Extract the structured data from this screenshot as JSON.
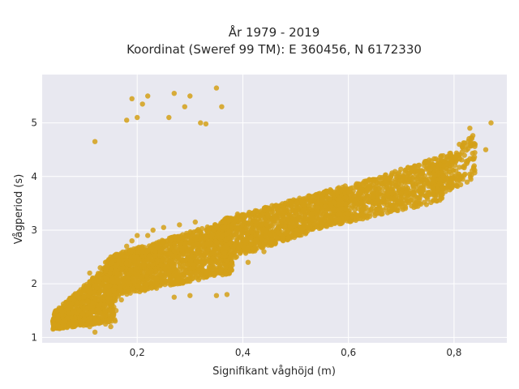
{
  "chart_data": {
    "type": "scatter",
    "title": "År 1979 - 2019",
    "subtitle": "Koordinat (Sweref 99 TM): E 360456, N 6172330",
    "xlabel": "Signifikant våghöjd (m)",
    "ylabel": "Vågperiod (s)",
    "xlim": [
      0.02,
      0.9
    ],
    "ylim": [
      0.9,
      5.9
    ],
    "x_ticks": [
      0.2,
      0.4,
      0.6,
      0.8
    ],
    "x_tick_labels": [
      "0,2",
      "0,4",
      "0,6",
      "0,8"
    ],
    "y_ticks": [
      1,
      2,
      3,
      4,
      5
    ],
    "y_tick_labels": [
      "1",
      "2",
      "3",
      "4",
      "5"
    ],
    "grid": true,
    "legend": "none",
    "colors": {
      "marker": "#d4a017",
      "plot_background": "#e8e8f0",
      "grid": "#ffffff"
    },
    "series": [
      {
        "points": [
          {
            "x": 0.05,
            "y": 1.22
          },
          {
            "x": 0.05,
            "y": 1.4
          },
          {
            "x": 0.06,
            "y": 1.3
          },
          {
            "x": 0.07,
            "y": 1.45
          },
          {
            "x": 0.08,
            "y": 1.25
          },
          {
            "x": 0.09,
            "y": 1.5
          },
          {
            "x": 0.1,
            "y": 1.35
          },
          {
            "x": 0.11,
            "y": 1.2
          },
          {
            "x": 0.12,
            "y": 1.1
          },
          {
            "x": 0.13,
            "y": 1.28
          },
          {
            "x": 0.14,
            "y": 1.25
          },
          {
            "x": 0.15,
            "y": 1.2
          },
          {
            "x": 0.08,
            "y": 1.7
          },
          {
            "x": 0.1,
            "y": 1.9
          },
          {
            "x": 0.11,
            "y": 2.2
          },
          {
            "x": 0.12,
            "y": 2.1
          },
          {
            "x": 0.13,
            "y": 2.3
          },
          {
            "x": 0.14,
            "y": 2.4
          },
          {
            "x": 0.15,
            "y": 2.5
          },
          {
            "x": 0.16,
            "y": 2.55
          },
          {
            "x": 0.17,
            "y": 1.7
          },
          {
            "x": 0.18,
            "y": 2.7
          },
          {
            "x": 0.19,
            "y": 2.8
          },
          {
            "x": 0.2,
            "y": 2.9
          },
          {
            "x": 0.21,
            "y": 2.6
          },
          {
            "x": 0.22,
            "y": 2.9
          },
          {
            "x": 0.23,
            "y": 3.0
          },
          {
            "x": 0.25,
            "y": 3.05
          },
          {
            "x": 0.26,
            "y": 2.2
          },
          {
            "x": 0.27,
            "y": 1.75
          },
          {
            "x": 0.28,
            "y": 3.1
          },
          {
            "x": 0.3,
            "y": 1.78
          },
          {
            "x": 0.31,
            "y": 3.15
          },
          {
            "x": 0.33,
            "y": 2.2
          },
          {
            "x": 0.35,
            "y": 1.78
          },
          {
            "x": 0.37,
            "y": 1.8
          },
          {
            "x": 0.39,
            "y": 3.3
          },
          {
            "x": 0.41,
            "y": 2.4
          },
          {
            "x": 0.44,
            "y": 2.6
          },
          {
            "x": 0.45,
            "y": 3.4
          },
          {
            "x": 0.48,
            "y": 3.5
          },
          {
            "x": 0.5,
            "y": 2.9
          },
          {
            "x": 0.52,
            "y": 3.6
          },
          {
            "x": 0.55,
            "y": 3.2
          },
          {
            "x": 0.58,
            "y": 3.7
          },
          {
            "x": 0.6,
            "y": 3.3
          },
          {
            "x": 0.62,
            "y": 3.8
          },
          {
            "x": 0.65,
            "y": 3.5
          },
          {
            "x": 0.68,
            "y": 4.0
          },
          {
            "x": 0.7,
            "y": 3.6
          },
          {
            "x": 0.72,
            "y": 4.1
          },
          {
            "x": 0.75,
            "y": 3.7
          },
          {
            "x": 0.77,
            "y": 4.3
          },
          {
            "x": 0.79,
            "y": 3.85
          },
          {
            "x": 0.81,
            "y": 4.6
          },
          {
            "x": 0.82,
            "y": 4.2
          },
          {
            "x": 0.83,
            "y": 4.9
          },
          {
            "x": 0.84,
            "y": 4.6
          },
          {
            "x": 0.86,
            "y": 4.5
          },
          {
            "x": 0.87,
            "y": 5.0
          },
          {
            "x": 0.12,
            "y": 4.65
          },
          {
            "x": 0.18,
            "y": 5.05
          },
          {
            "x": 0.19,
            "y": 5.45
          },
          {
            "x": 0.2,
            "y": 5.1
          },
          {
            "x": 0.21,
            "y": 5.35
          },
          {
            "x": 0.22,
            "y": 5.5
          },
          {
            "x": 0.26,
            "y": 5.1
          },
          {
            "x": 0.27,
            "y": 5.55
          },
          {
            "x": 0.29,
            "y": 5.3
          },
          {
            "x": 0.3,
            "y": 5.5
          },
          {
            "x": 0.32,
            "y": 5.0
          },
          {
            "x": 0.33,
            "y": 4.98
          },
          {
            "x": 0.35,
            "y": 5.65
          },
          {
            "x": 0.36,
            "y": 5.3
          }
        ]
      }
    ],
    "dense_bands": [
      {
        "x_from": 0.04,
        "x_to": 0.16,
        "y_low_from": 1.15,
        "y_low_to": 1.3,
        "y_high_from": 1.45,
        "y_high_to": 2.5,
        "count": 900
      },
      {
        "x_from": 0.14,
        "x_to": 0.38,
        "y_low_from": 1.72,
        "y_low_to": 2.2,
        "y_high_from": 2.5,
        "y_high_to": 3.2,
        "count": 1500
      },
      {
        "x_from": 0.36,
        "x_to": 0.6,
        "y_low_from": 2.4,
        "y_low_to": 3.2,
        "y_high_from": 3.2,
        "y_high_to": 3.85,
        "count": 1100
      },
      {
        "x_from": 0.58,
        "x_to": 0.78,
        "y_low_from": 3.1,
        "y_low_to": 3.55,
        "y_high_from": 3.75,
        "y_high_to": 4.4,
        "count": 700
      },
      {
        "x_from": 0.76,
        "x_to": 0.84,
        "y_low_from": 3.6,
        "y_low_to": 3.95,
        "y_high_from": 4.2,
        "y_high_to": 4.8,
        "count": 200
      }
    ]
  }
}
